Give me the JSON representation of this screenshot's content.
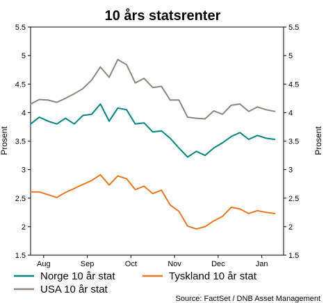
{
  "chart_data": {
    "type": "line",
    "title": "10 års statsrenter",
    "ylabel_left": "Prosent",
    "ylabel_right": "Prosent",
    "ylim": [
      1.5,
      5.5
    ],
    "yticks": [
      1.5,
      2,
      2.5,
      3,
      3.5,
      4,
      4.5,
      5,
      5.5
    ],
    "ytick_labels": [
      "1.5",
      "2",
      "2.5",
      "3",
      "3.5",
      "4",
      "4.5",
      "5",
      "5.5"
    ],
    "x_tick_labels": [
      "Aug",
      "Sep",
      "Oct",
      "Nov",
      "Dec",
      "Jan"
    ],
    "x_tick_positions": [
      1.5,
      6.5,
      11.5,
      16.5,
      21.5,
      26.5
    ],
    "xlim": [
      0,
      29
    ],
    "grid": false,
    "legend_placement": "bottom",
    "source": "Source: FactSet / DNB Asset Management",
    "x": [
      0,
      1,
      2,
      3,
      4,
      5,
      6,
      7,
      8,
      9,
      10,
      11,
      12,
      13,
      14,
      15,
      16,
      17,
      18,
      19,
      20,
      21,
      22,
      23,
      24,
      25,
      26,
      27,
      28
    ],
    "series": [
      {
        "name": "Norge 10 år stat",
        "color": "#00827f",
        "values": [
          3.8,
          3.92,
          3.85,
          3.8,
          3.9,
          3.8,
          3.95,
          3.97,
          4.15,
          3.85,
          4.08,
          4.05,
          3.8,
          3.82,
          3.66,
          3.68,
          3.55,
          3.38,
          3.22,
          3.32,
          3.25,
          3.38,
          3.47,
          3.58,
          3.65,
          3.53,
          3.6,
          3.55,
          3.53
        ]
      },
      {
        "name": "USA 10 år stat",
        "color": "#8a8580",
        "values": [
          4.15,
          4.23,
          4.22,
          4.18,
          4.25,
          4.33,
          4.42,
          4.57,
          4.8,
          4.62,
          4.93,
          4.84,
          4.52,
          4.6,
          4.44,
          4.46,
          4.22,
          4.22,
          3.92,
          3.9,
          3.89,
          4.03,
          3.97,
          4.13,
          4.15,
          4.02,
          4.1,
          4.05,
          4.02
        ]
      },
      {
        "name": "Tyskland 10 år stat",
        "color": "#e87722",
        "values": [
          2.61,
          2.61,
          2.56,
          2.51,
          2.6,
          2.67,
          2.74,
          2.81,
          2.91,
          2.73,
          2.89,
          2.84,
          2.65,
          2.71,
          2.58,
          2.64,
          2.38,
          2.27,
          2.01,
          1.96,
          2.0,
          2.1,
          2.18,
          2.34,
          2.31,
          2.23,
          2.28,
          2.25,
          2.23
        ]
      }
    ]
  }
}
